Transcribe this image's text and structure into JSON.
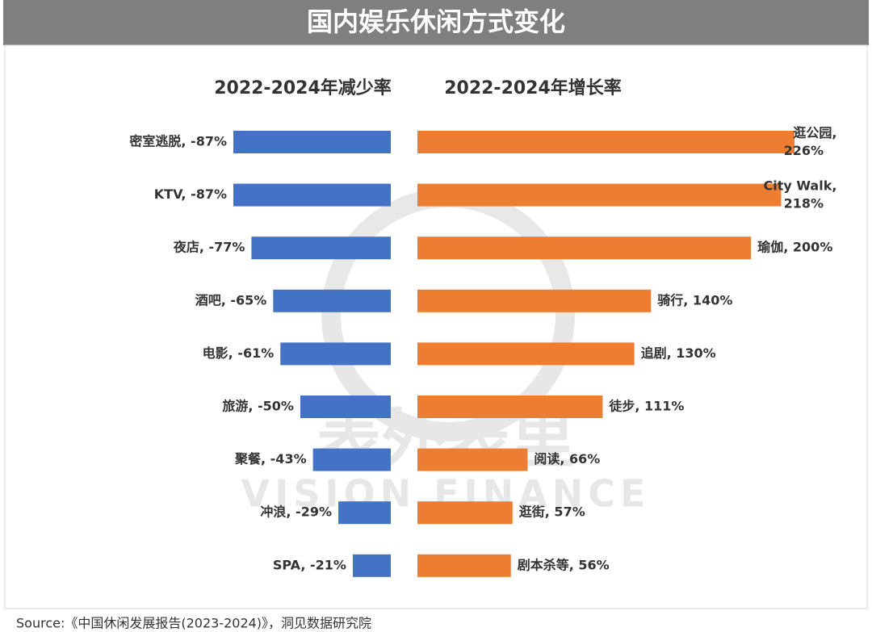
{
  "title": "国内娱乐休闲方式变化",
  "source": "Source:《中国休闲发展报告(2023-2024)》，洞见数据研究院",
  "watermark": [
    "表外表里",
    "VISION FINANCE"
  ],
  "chart_data": [
    {
      "type": "bar",
      "orientation": "horizontal",
      "side": "left",
      "title": "2022-2024年减少率",
      "color": "#4472c4",
      "values": [
        -87,
        -87,
        -77,
        -65,
        -61,
        -50,
        -43,
        -29,
        -21
      ],
      "value_labels": [
        "密室逃脱, -87%",
        "KTV, -87%",
        "夜店, -77%",
        "酒吧, -65%",
        "电影, -61%",
        "旅游, -50%",
        "聚餐, -43%",
        "冲浪, -29%",
        "SPA, -21%"
      ]
    },
    {
      "type": "bar",
      "orientation": "horizontal",
      "side": "right",
      "title": "2022-2024年增长率",
      "color": "#ed7d31",
      "values": [
        226,
        218,
        200,
        140,
        130,
        111,
        66,
        57,
        56
      ],
      "value_labels": [
        "逛公园, 226%",
        "City Walk, 218%",
        "瑜伽, 200%",
        "骑行, 140%",
        "追剧, 130%",
        "徒步, 111%",
        "阅读, 66%",
        "逛街, 57%",
        "剧本杀等, 56%"
      ]
    }
  ]
}
